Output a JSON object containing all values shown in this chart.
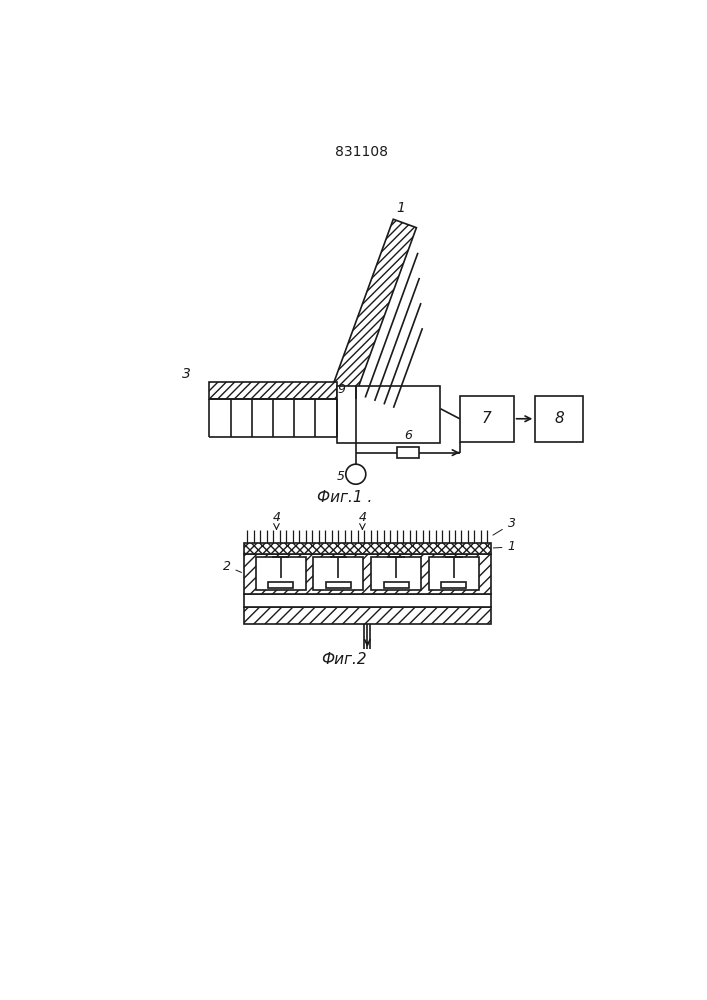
{
  "title": "831108",
  "fig1_label": "Фиг.1",
  "fig2_label": "Фиг.2",
  "bg_color": "#ffffff",
  "line_color": "#1a1a1a",
  "lw": 1.2
}
